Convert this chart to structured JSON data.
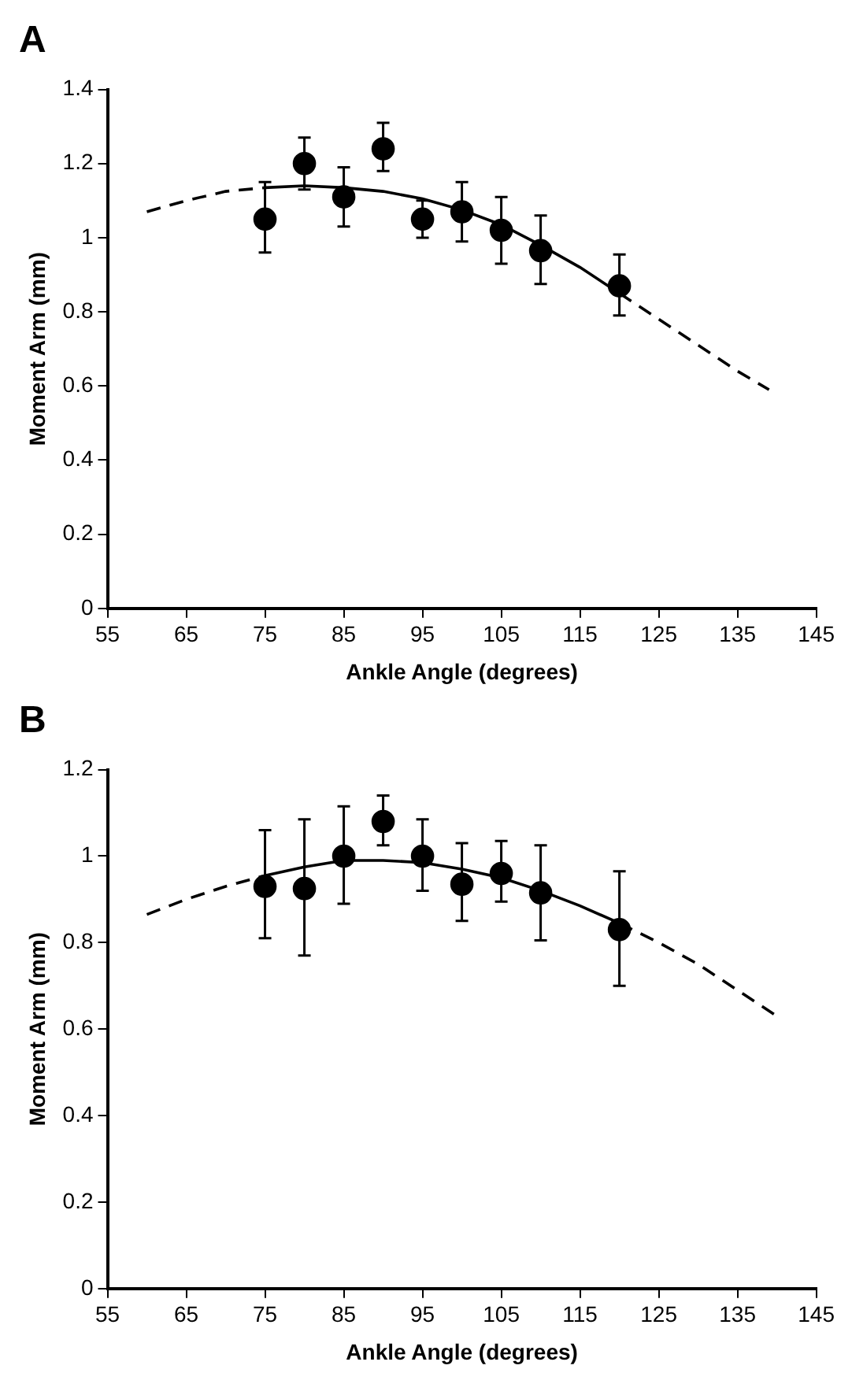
{
  "chart_data": [
    {
      "type": "scatter",
      "title": "A",
      "xlabel": "Ankle Angle (degrees)",
      "ylabel": "Moment Arm (mm)",
      "xlim": [
        55,
        145
      ],
      "xticks": [
        55,
        65,
        75,
        85,
        95,
        105,
        115,
        125,
        135,
        145
      ],
      "ylim": [
        0,
        1.4
      ],
      "yticks": [
        0,
        0.2,
        0.4,
        0.6,
        0.8,
        1,
        1.2,
        1.4
      ],
      "grid": false,
      "legend": false,
      "series": [
        {
          "type": "line",
          "color": "#000000",
          "marker": "none",
          "line_style": "dashed",
          "x": [
            60,
            65,
            70,
            75
          ],
          "values": [
            1.07,
            1.1,
            1.125,
            1.135
          ]
        },
        {
          "type": "line",
          "color": "#000000",
          "marker": "none",
          "line_style": "solid",
          "x": [
            75,
            80,
            85,
            90,
            95,
            100,
            105,
            110,
            115,
            120
          ],
          "values": [
            1.135,
            1.14,
            1.135,
            1.125,
            1.105,
            1.075,
            1.035,
            0.98,
            0.92,
            0.85
          ]
        },
        {
          "type": "line",
          "color": "#000000",
          "marker": "none",
          "line_style": "dashed",
          "x": [
            120,
            125,
            130,
            135,
            139
          ],
          "values": [
            0.85,
            0.78,
            0.71,
            0.64,
            0.59
          ]
        },
        {
          "color": "#000000",
          "marker": "circle",
          "x": [
            75,
            80,
            85,
            90,
            95,
            100,
            105,
            110,
            120
          ],
          "values": [
            1.05,
            1.2,
            1.11,
            1.24,
            1.05,
            1.07,
            1.02,
            0.965,
            0.87
          ],
          "errors": [
            [
              0.96,
              1.15
            ],
            [
              1.13,
              1.27
            ],
            [
              1.03,
              1.19
            ],
            [
              1.18,
              1.31
            ],
            [
              1.0,
              1.1
            ],
            [
              0.99,
              1.15
            ],
            [
              0.93,
              1.11
            ],
            [
              0.875,
              1.06
            ],
            [
              0.79,
              0.955
            ]
          ]
        }
      ]
    },
    {
      "type": "scatter",
      "title": "B",
      "xlabel": "Ankle Angle (degrees)",
      "ylabel": "Moment Arm (mm)",
      "xlim": [
        55,
        145
      ],
      "xticks": [
        55,
        65,
        75,
        85,
        95,
        105,
        115,
        125,
        135,
        145
      ],
      "ylim": [
        0,
        1.2
      ],
      "yticks": [
        0,
        0.2,
        0.4,
        0.6,
        0.8,
        1,
        1.2
      ],
      "grid": false,
      "legend": false,
      "series": [
        {
          "type": "line",
          "color": "#000000",
          "marker": "none",
          "line_style": "dashed",
          "x": [
            60,
            65,
            70,
            75
          ],
          "values": [
            0.865,
            0.9,
            0.93,
            0.955
          ]
        },
        {
          "type": "line",
          "color": "#000000",
          "marker": "none",
          "line_style": "solid",
          "x": [
            75,
            80,
            85,
            90,
            95,
            100,
            105,
            110,
            115,
            120
          ],
          "values": [
            0.955,
            0.975,
            0.99,
            0.99,
            0.985,
            0.97,
            0.95,
            0.92,
            0.885,
            0.845
          ]
        },
        {
          "type": "line",
          "color": "#000000",
          "marker": "none",
          "line_style": "dashed",
          "x": [
            120,
            125,
            130,
            135,
            140
          ],
          "values": [
            0.845,
            0.8,
            0.75,
            0.69,
            0.63
          ]
        },
        {
          "color": "#000000",
          "marker": "circle",
          "x": [
            75,
            80,
            85,
            90,
            95,
            100,
            105,
            110,
            120
          ],
          "values": [
            0.93,
            0.925,
            1.0,
            1.08,
            1.0,
            0.935,
            0.96,
            0.915,
            0.83
          ],
          "errors": [
            [
              0.81,
              1.06
            ],
            [
              0.77,
              1.085
            ],
            [
              0.89,
              1.115
            ],
            [
              1.025,
              1.14
            ],
            [
              0.92,
              1.085
            ],
            [
              0.85,
              1.03
            ],
            [
              0.895,
              1.035
            ],
            [
              0.805,
              1.025
            ],
            [
              0.7,
              0.965
            ]
          ]
        }
      ]
    }
  ]
}
